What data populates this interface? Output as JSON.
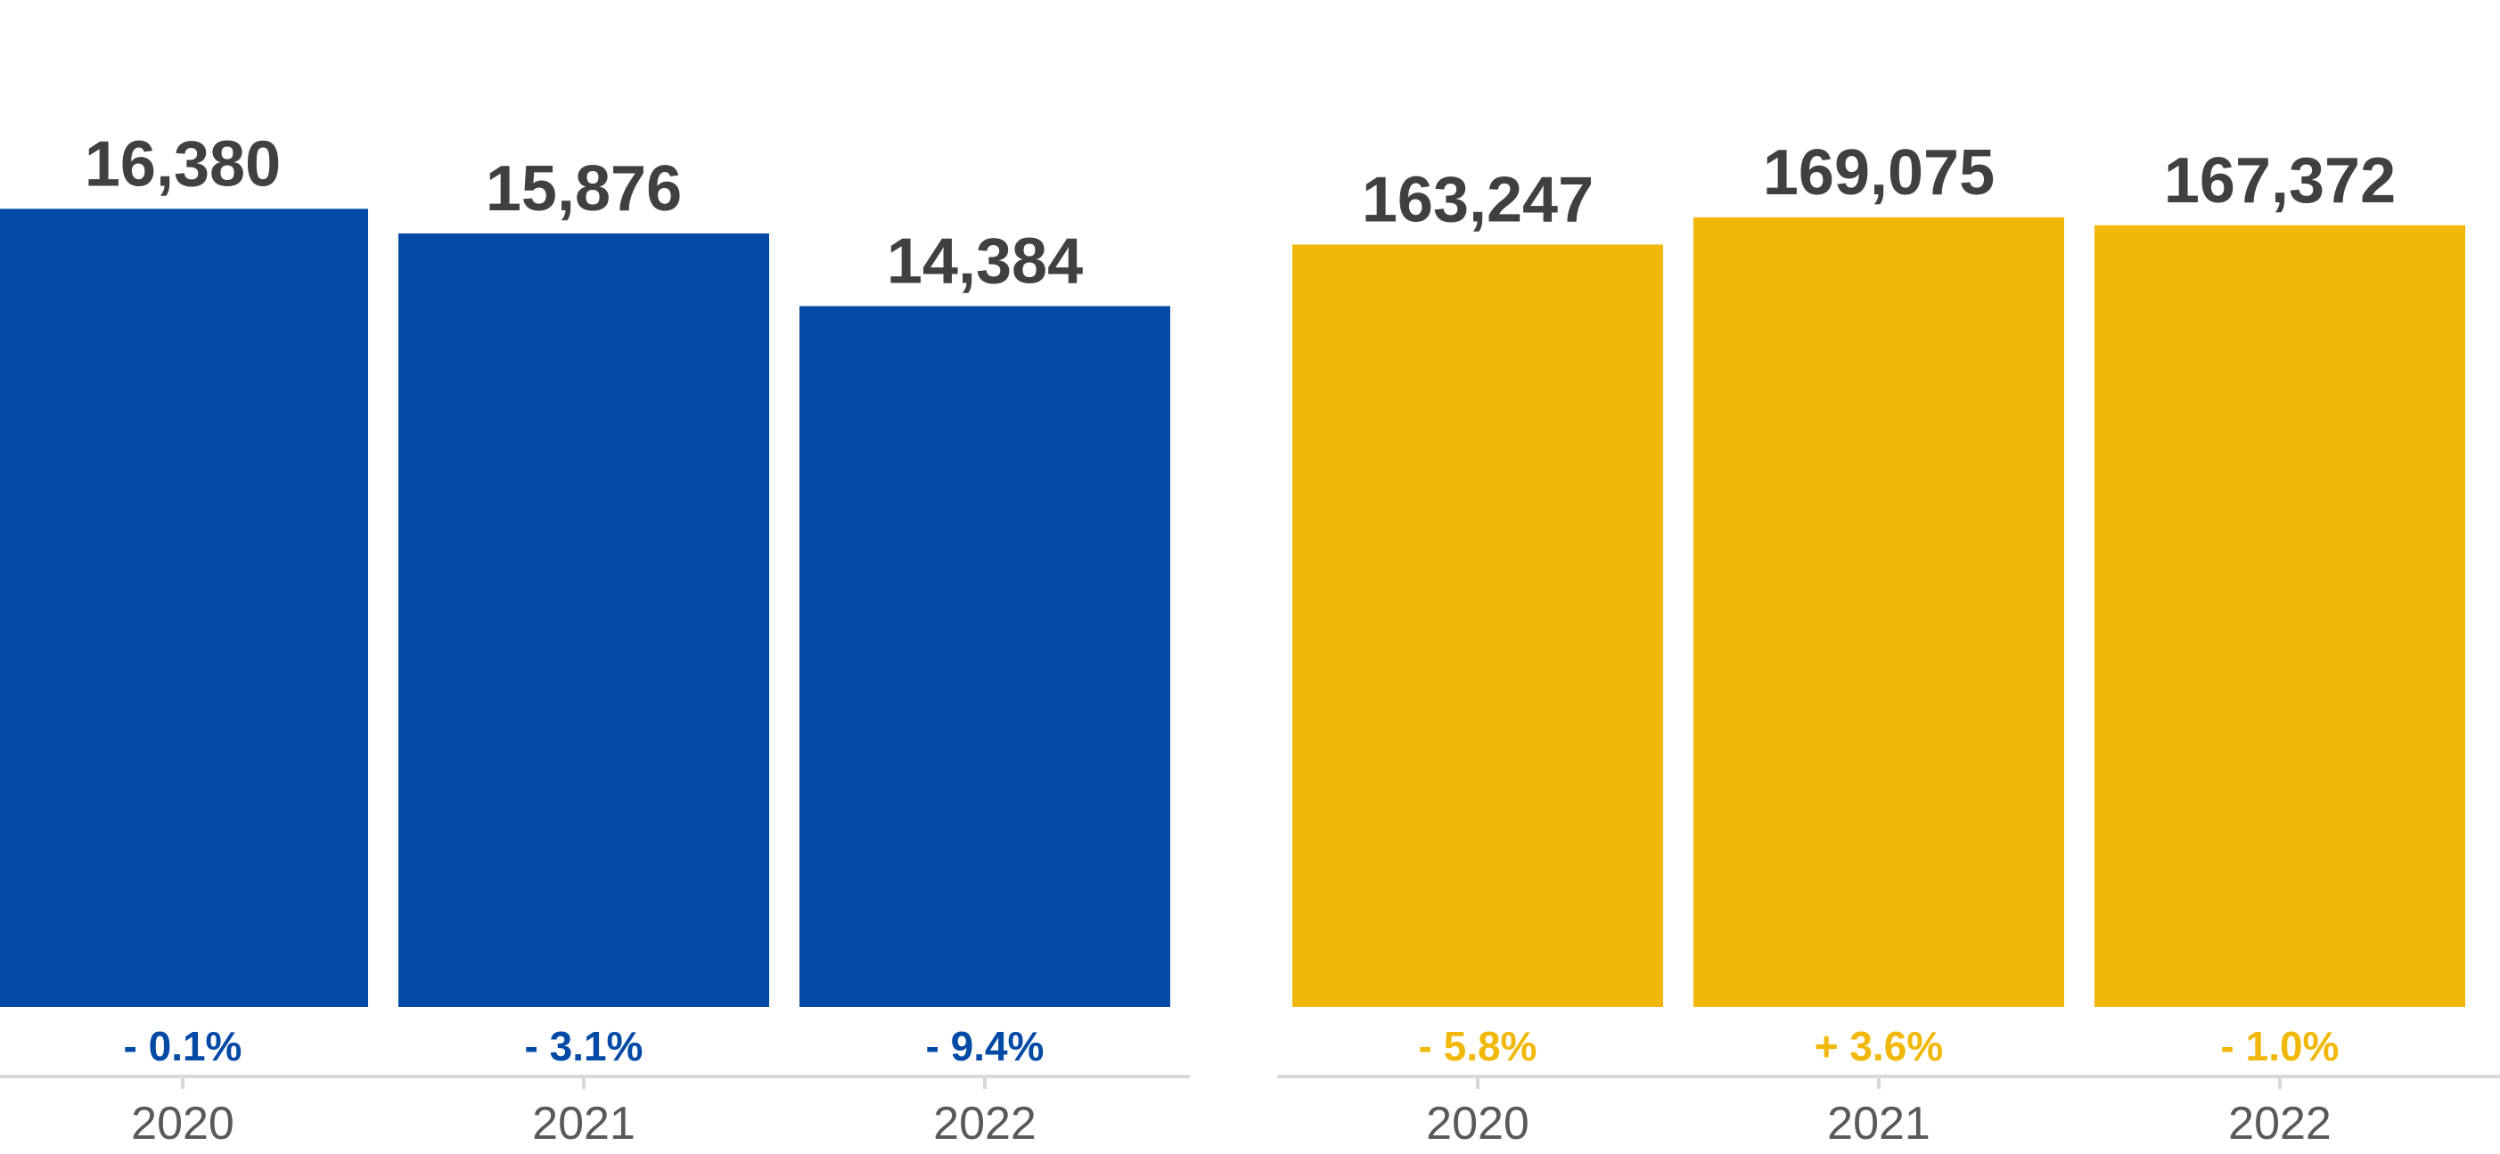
{
  "chart_data": [
    {
      "type": "bar",
      "panel": "left",
      "categories": [
        "2020",
        "2021",
        "2022"
      ],
      "values": [
        16380,
        15876,
        14384
      ],
      "value_labels": [
        "16,380",
        "15,876",
        "14,384"
      ],
      "change_labels": [
        "- 0.1%",
        "- 3.1%",
        "- 9.4%"
      ],
      "color": "#034AA6",
      "change_color": "#034AA6",
      "ylim": [
        0,
        17100
      ],
      "title": "",
      "xlabel": "",
      "ylabel": ""
    },
    {
      "type": "bar",
      "panel": "right",
      "categories": [
        "2020",
        "2021",
        "2022"
      ],
      "values": [
        163247,
        169075,
        167372
      ],
      "value_labels": [
        "163,247",
        "169,075",
        "167,372"
      ],
      "change_labels": [
        "- 5.8%",
        "+ 3.6%",
        "- 1.0%"
      ],
      "color": "#F1B80A",
      "change_color": "#F1B80A",
      "ylim": [
        0,
        178400
      ],
      "title": "",
      "xlabel": "",
      "ylabel": ""
    }
  ],
  "colors": {
    "label_text": "#404040",
    "tick_text": "#595959",
    "axis_line": "#D9D9D9"
  }
}
